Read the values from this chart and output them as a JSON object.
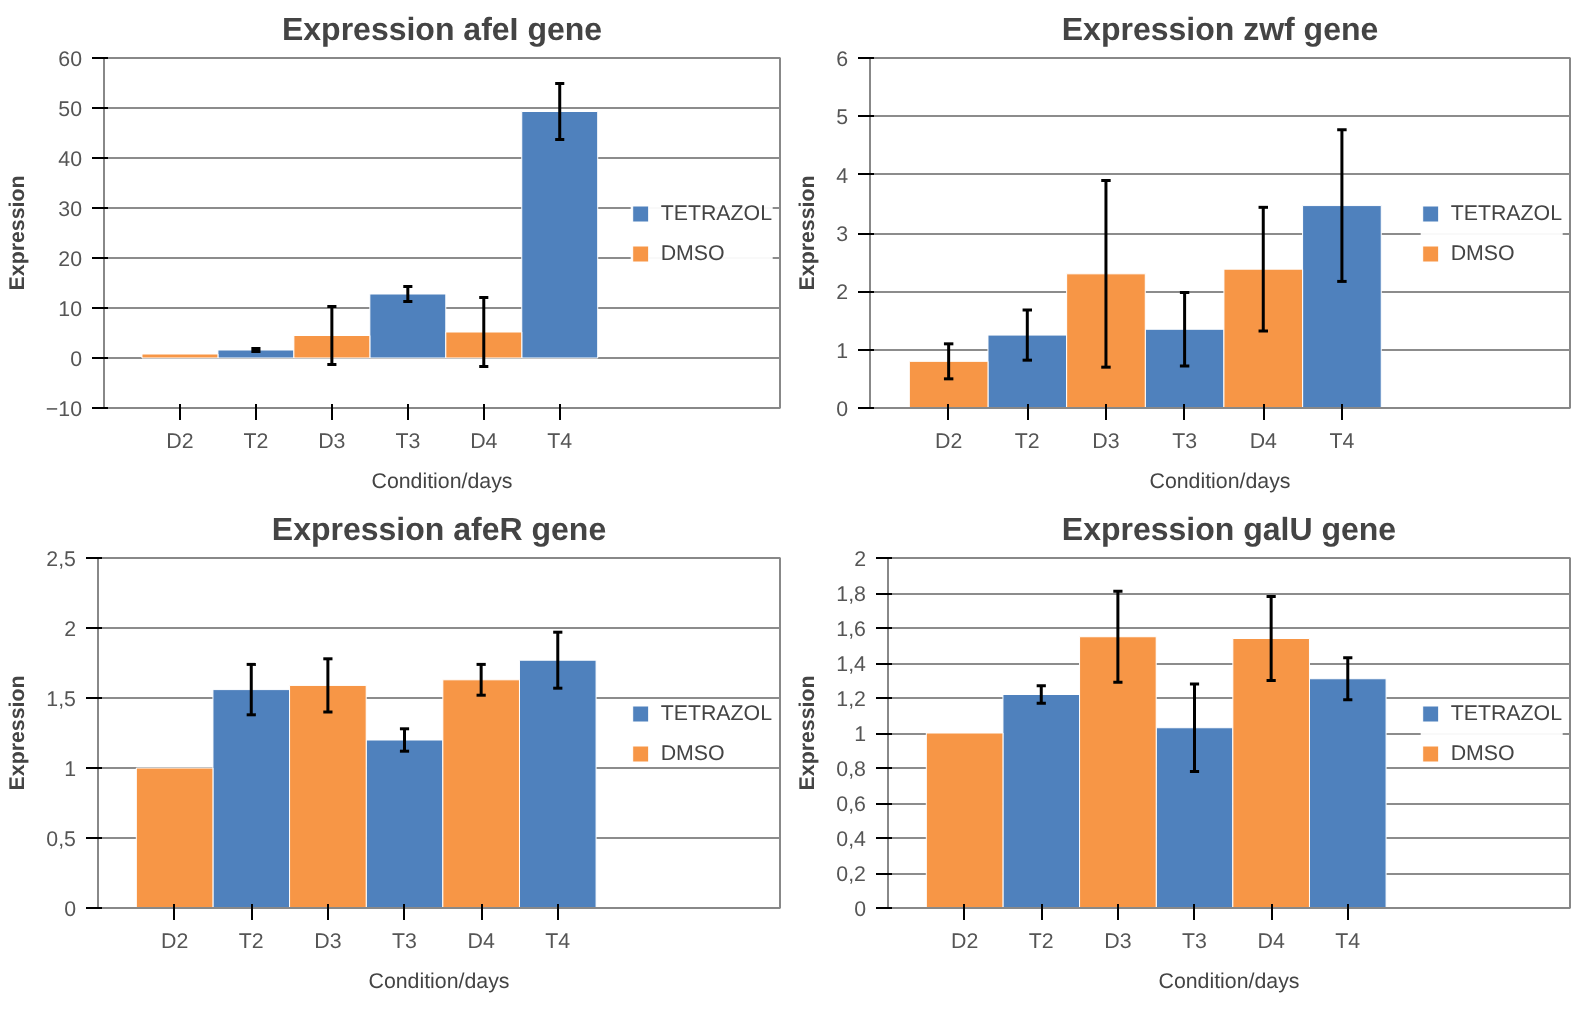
{
  "chart_data": [
    {
      "type": "bar",
      "title": "Expression afeI gene",
      "xlabel": "Condition/days",
      "ylabel": "Expression",
      "categories": [
        "D2",
        "T2",
        "D3",
        "T3",
        "D4",
        "T4"
      ],
      "ylim": [
        -10,
        60
      ],
      "yticks": [
        -10,
        0,
        10,
        20,
        30,
        40,
        50,
        60
      ],
      "grid": "y",
      "legend": "right",
      "series": [
        {
          "name": "TETRAZOL",
          "color": "#4f81bd",
          "values": [
            null,
            1.6,
            null,
            12.8,
            null,
            49.3
          ],
          "errors": [
            null,
            0.3,
            null,
            1.5,
            null,
            5.6
          ]
        },
        {
          "name": "DMSO",
          "color": "#f79646",
          "values": [
            0.8,
            null,
            4.5,
            null,
            5.2,
            null
          ],
          "errors": [
            null,
            null,
            5.8,
            null,
            6.9,
            null
          ]
        }
      ]
    },
    {
      "type": "bar",
      "title": "Expression zwf gene",
      "xlabel": "Condition/days",
      "ylabel": "Expression",
      "categories": [
        "D2",
        "T2",
        "D3",
        "T3",
        "D4",
        "T4"
      ],
      "ylim": [
        0,
        6
      ],
      "yticks": [
        0,
        1,
        2,
        3,
        4,
        5,
        6
      ],
      "grid": "y",
      "legend": "right",
      "series": [
        {
          "name": "TETRAZOL",
          "color": "#4f81bd",
          "values": [
            null,
            1.25,
            null,
            1.35,
            null,
            3.47
          ],
          "errors": [
            null,
            0.43,
            null,
            0.63,
            null,
            1.3
          ]
        },
        {
          "name": "DMSO",
          "color": "#f79646",
          "values": [
            0.8,
            null,
            2.3,
            null,
            2.38,
            null
          ],
          "errors": [
            0.3,
            null,
            1.6,
            null,
            1.06,
            null
          ]
        }
      ]
    },
    {
      "type": "bar",
      "title": "Expression afeR gene",
      "xlabel": "Condition/days",
      "ylabel": "Expression",
      "categories": [
        "D2",
        "T2",
        "D3",
        "T3",
        "D4",
        "T4"
      ],
      "ylim": [
        0,
        2.5
      ],
      "yticks": [
        0,
        {
          "value": 0.5,
          "label": "0,5"
        },
        1,
        {
          "value": 1.5,
          "label": "1,5"
        },
        2,
        {
          "value": 2.5,
          "label": "2,5"
        }
      ],
      "grid": "y",
      "legend": "right",
      "series": [
        {
          "name": "TETRAZOL",
          "color": "#4f81bd",
          "values": [
            null,
            1.56,
            null,
            1.2,
            null,
            1.77
          ],
          "errors": [
            null,
            0.18,
            null,
            0.08,
            null,
            0.2
          ]
        },
        {
          "name": "DMSO",
          "color": "#f79646",
          "values": [
            1.0,
            null,
            1.59,
            null,
            1.63,
            null
          ],
          "errors": [
            null,
            null,
            0.19,
            null,
            0.11,
            null
          ]
        }
      ]
    },
    {
      "type": "bar",
      "title": "Expression galU gene",
      "xlabel": "Condition/days",
      "ylabel": "Expression",
      "categories": [
        "D2",
        "T2",
        "D3",
        "T3",
        "D4",
        "T4"
      ],
      "ylim": [
        0,
        2
      ],
      "yticks": [
        0,
        {
          "value": 0.2,
          "label": "0,2"
        },
        {
          "value": 0.4,
          "label": "0,4"
        },
        {
          "value": 0.6,
          "label": "0,6"
        },
        {
          "value": 0.8,
          "label": "0,8"
        },
        1,
        {
          "value": 1.2,
          "label": "1,2"
        },
        {
          "value": 1.4,
          "label": "1,4"
        },
        {
          "value": 1.6,
          "label": "1,6"
        },
        {
          "value": 1.8,
          "label": "1,8"
        },
        2
      ],
      "grid": "y",
      "legend": "right",
      "series": [
        {
          "name": "TETRAZOL",
          "color": "#4f81bd",
          "values": [
            null,
            1.22,
            null,
            1.03,
            null,
            1.31
          ],
          "errors": [
            null,
            0.05,
            null,
            0.25,
            null,
            0.12
          ]
        },
        {
          "name": "DMSO",
          "color": "#f79646",
          "values": [
            1.0,
            null,
            1.55,
            null,
            1.54,
            null
          ],
          "errors": [
            null,
            null,
            0.26,
            null,
            0.24,
            null
          ]
        }
      ]
    }
  ]
}
